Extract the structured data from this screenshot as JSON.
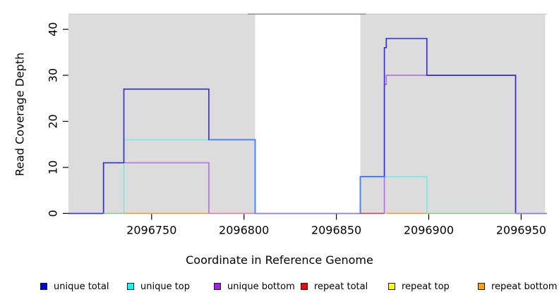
{
  "figure": {
    "xlabel": "Coordinate in Reference Genome",
    "ylabel": "Read Coverage Depth"
  },
  "legend": {
    "position": "bottom",
    "items": [
      {
        "label": "unique total",
        "color": "#0000EE"
      },
      {
        "label": "unique top",
        "color": "#00FFFF"
      },
      {
        "label": "unique bottom",
        "color": "#A020F0"
      },
      {
        "label": "repeat total",
        "color": "#FF0000"
      },
      {
        "label": "repeat top",
        "color": "#FFFF00"
      },
      {
        "label": "repeat bottom",
        "color": "#FFA500"
      }
    ]
  },
  "chart_data": {
    "type": "line",
    "subtype": "step-function read coverage plot",
    "title": "",
    "xlabel": "Coordinate in Reference Genome",
    "ylabel": "Read Coverage Depth",
    "xlim": [
      2096705,
      2096964
    ],
    "ylim": [
      0,
      43.3
    ],
    "x_ticks": [
      2096750,
      2096800,
      2096850,
      2096900,
      2096950
    ],
    "y_ticks": [
      0,
      10,
      20,
      30,
      40
    ],
    "grid": false,
    "legend_position": "bottom",
    "shade_color": "#DCDCDC",
    "shaded_regions": [
      {
        "name": "unique-region-left",
        "x1": 2096705,
        "x2": 2096806
      },
      {
        "name": "unique-region-right",
        "x1": 2096863,
        "x2": 2096963
      }
    ],
    "gap_top_line": {
      "x1": 2096802,
      "x2": 2096866,
      "y": 43.3,
      "color": "#8F8F8F"
    },
    "series": [
      {
        "name": "unique total",
        "legend_color": "#0000EE",
        "line_color": "#3434D6",
        "steps": [
          [
            2096705,
            0
          ],
          [
            2096724,
            11
          ],
          [
            2096735,
            27
          ],
          [
            2096781,
            16
          ],
          [
            2096806,
            0
          ],
          [
            2096863,
            8
          ],
          [
            2096876,
            36
          ],
          [
            2096877,
            38
          ],
          [
            2096899,
            30
          ],
          [
            2096947,
            0
          ],
          [
            2096964,
            0
          ]
        ]
      },
      {
        "name": "unique top",
        "legend_color": "#00FFFF",
        "line_color": "#7DE8EC",
        "steps": [
          [
            2096705,
            0
          ],
          [
            2096735,
            16
          ],
          [
            2096806,
            0
          ],
          [
            2096863,
            8
          ],
          [
            2096899,
            0
          ],
          [
            2096964,
            0
          ]
        ]
      },
      {
        "name": "unique bottom",
        "legend_color": "#A020F0",
        "line_color": "#B574DE",
        "steps": [
          [
            2096705,
            0
          ],
          [
            2096724,
            11
          ],
          [
            2096781,
            0
          ],
          [
            2096876,
            28
          ],
          [
            2096877,
            30
          ],
          [
            2096947,
            0
          ],
          [
            2096964,
            0
          ]
        ]
      },
      {
        "name": "repeat total",
        "legend_color": "#FF0000",
        "line_color": "#D84858",
        "steps": [
          [
            2096705,
            0
          ],
          [
            2096964,
            0
          ]
        ]
      },
      {
        "name": "repeat top",
        "legend_color": "#FFFF00",
        "line_color": "#E8E84A",
        "steps": [
          [
            2096705,
            0
          ],
          [
            2096964,
            0
          ]
        ]
      },
      {
        "name": "repeat bottom",
        "legend_color": "#FFA500",
        "line_color": "#FF9C20",
        "steps": [
          [
            2096705,
            0
          ],
          [
            2096964,
            0
          ]
        ]
      }
    ],
    "coincident_total_top_color": "#4583FF",
    "coincident_total_top_segments": [
      {
        "points": [
          [
            2096781,
            16
          ],
          [
            2096806,
            16
          ],
          [
            2096806,
            0
          ]
        ]
      },
      {
        "points": [
          [
            2096863,
            0
          ],
          [
            2096863,
            8
          ],
          [
            2096876,
            8
          ]
        ]
      }
    ],
    "baseline_zero_segments": [
      {
        "x1": 2096705,
        "x2": 2096724,
        "color": "#4040E0"
      },
      {
        "x1": 2096724,
        "x2": 2096735,
        "color": "#8FCF8F"
      },
      {
        "x1": 2096735,
        "x2": 2096781,
        "color": "#FF9C20"
      },
      {
        "x1": 2096781,
        "x2": 2096806,
        "color": "#E880A8"
      },
      {
        "x1": 2096806,
        "x2": 2096863,
        "color": "#9A7CE8"
      },
      {
        "x1": 2096863,
        "x2": 2096876,
        "color": "#D84858"
      },
      {
        "x1": 2096877,
        "x2": 2096899,
        "color": "#FF9C20"
      },
      {
        "x1": 2096899,
        "x2": 2096947,
        "color": "#8FCF8F"
      },
      {
        "x1": 2096947,
        "x2": 2096964,
        "color": "#9A7CE8"
      }
    ]
  },
  "layout_note": "R-style base graphics plot, no top/right box, gray shaded unique regions"
}
